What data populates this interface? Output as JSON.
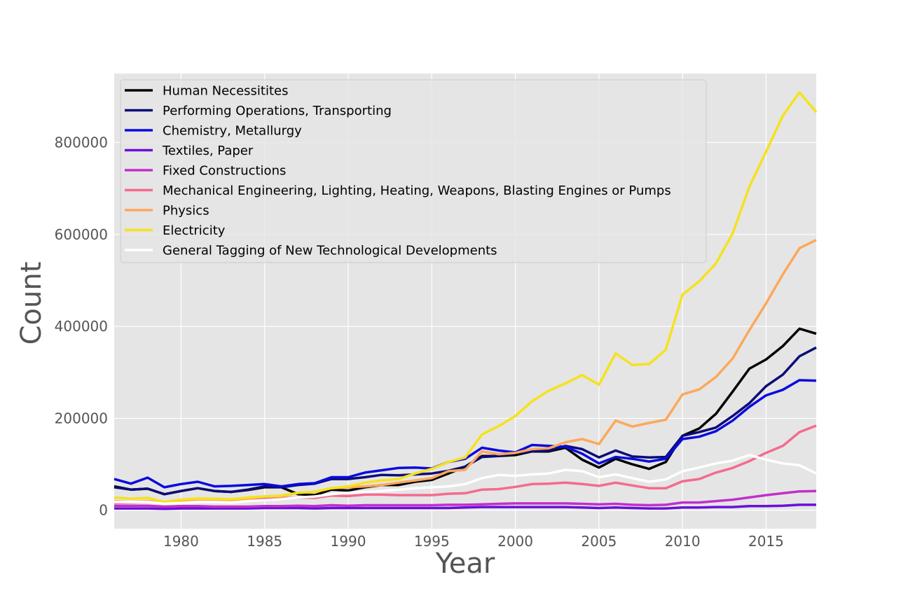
{
  "chart_data": {
    "type": "line",
    "title": "",
    "xlabel": "Year",
    "ylabel": "Count",
    "xlim": [
      1976,
      2018
    ],
    "ylim": [
      -40000,
      950000
    ],
    "xticks": [
      1980,
      1985,
      1990,
      1995,
      2000,
      2005,
      2010,
      2015
    ],
    "yticks": [
      0,
      200000,
      400000,
      600000,
      800000
    ],
    "grid": true,
    "legend_position": "upper-left",
    "x": [
      1976,
      1977,
      1978,
      1979,
      1980,
      1981,
      1982,
      1983,
      1984,
      1985,
      1986,
      1987,
      1988,
      1989,
      1990,
      1991,
      1992,
      1993,
      1994,
      1995,
      1996,
      1997,
      1998,
      1999,
      2000,
      2001,
      2002,
      2003,
      2004,
      2005,
      2006,
      2007,
      2008,
      2009,
      2010,
      2011,
      2012,
      2013,
      2014,
      2015,
      2016,
      2017,
      2018
    ],
    "series": [
      {
        "name": "Human Necessitites",
        "color": "#000000",
        "values": [
          52000,
          45000,
          47000,
          35000,
          42000,
          48000,
          42000,
          40000,
          44000,
          50000,
          50000,
          35000,
          33000,
          45000,
          43000,
          50000,
          55000,
          55000,
          62000,
          66000,
          80000,
          95000,
          118000,
          118000,
          120000,
          128000,
          128000,
          136000,
          110000,
          93000,
          112000,
          100000,
          90000,
          105000,
          162000,
          178000,
          210000,
          258000,
          308000,
          328000,
          357000,
          395000,
          384000
        ]
      },
      {
        "name": "Performing Operations, Transporting",
        "color": "#0c0c78",
        "values": [
          50000,
          45000,
          47000,
          35000,
          42000,
          48000,
          42000,
          40000,
          45000,
          52000,
          50000,
          55000,
          58000,
          68000,
          68000,
          72000,
          77000,
          76000,
          78000,
          80000,
          86000,
          95000,
          116000,
          118000,
          125000,
          128000,
          130000,
          140000,
          133000,
          115000,
          130000,
          117000,
          115000,
          116000,
          162000,
          170000,
          180000,
          205000,
          233000,
          270000,
          295000,
          335000,
          354000
        ]
      },
      {
        "name": "Chemistry, Metallurgy",
        "color": "#0a0ae0",
        "values": [
          68000,
          58000,
          71000,
          50000,
          57000,
          62000,
          52000,
          53000,
          55000,
          57000,
          52000,
          57000,
          59000,
          72000,
          72000,
          82000,
          87000,
          92000,
          93000,
          91000,
          105000,
          112000,
          136000,
          130000,
          126000,
          142000,
          140000,
          138000,
          123000,
          102000,
          116000,
          112000,
          106000,
          112000,
          155000,
          160000,
          172000,
          195000,
          225000,
          250000,
          262000,
          283000,
          282000
        ]
      },
      {
        "name": "Textiles, Paper",
        "color": "#6a10d8",
        "values": [
          4000,
          4000,
          4000,
          3000,
          4000,
          4000,
          4000,
          4000,
          4000,
          5000,
          5000,
          5000,
          4000,
          5000,
          5000,
          5000,
          5000,
          5000,
          5000,
          5000,
          5000,
          6000,
          7000,
          7000,
          7000,
          7000,
          7000,
          7000,
          6000,
          5000,
          6000,
          5000,
          4000,
          4000,
          6000,
          6000,
          7000,
          7000,
          9000,
          9000,
          10000,
          12000,
          12000
        ]
      },
      {
        "name": "Fixed Constructions",
        "color": "#c22fcb",
        "values": [
          10000,
          10000,
          10000,
          8000,
          9000,
          9000,
          8000,
          8000,
          8000,
          9000,
          9000,
          10000,
          9000,
          11000,
          10000,
          11000,
          11000,
          11000,
          11000,
          11000,
          12000,
          12000,
          13000,
          14000,
          15000,
          15000,
          15000,
          15000,
          14000,
          13000,
          14000,
          12000,
          11000,
          12000,
          17000,
          17000,
          20000,
          23000,
          28000,
          33000,
          37000,
          41000,
          42000
        ]
      },
      {
        "name": "Mechanical Engineering, Lighting, Heating, Weapons, Blasting Engines or Pumps",
        "color": "#f46b8e",
        "values": [
          16000,
          17000,
          18000,
          14000,
          18000,
          20000,
          19000,
          19000,
          22000,
          25000,
          26000,
          28000,
          27000,
          32000,
          31000,
          34000,
          34000,
          33000,
          33000,
          33000,
          36000,
          37000,
          45000,
          46000,
          51000,
          57000,
          58000,
          60000,
          57000,
          53000,
          60000,
          54000,
          48000,
          48000,
          63000,
          68000,
          82000,
          92000,
          107000,
          125000,
          140000,
          170000,
          184000
        ]
      },
      {
        "name": "Physics",
        "color": "#fca85b",
        "values": [
          20000,
          18000,
          20000,
          15000,
          18000,
          20000,
          20000,
          20000,
          25000,
          30000,
          30000,
          38000,
          40000,
          48000,
          50000,
          52000,
          55000,
          60000,
          65000,
          70000,
          85000,
          88000,
          128000,
          122000,
          125000,
          133000,
          135000,
          148000,
          155000,
          144000,
          195000,
          182000,
          190000,
          197000,
          252000,
          263000,
          290000,
          330000,
          392000,
          450000,
          513000,
          570000,
          588000
        ]
      },
      {
        "name": "Electricity",
        "color": "#f5e21d",
        "values": [
          28000,
          25000,
          27000,
          18000,
          23000,
          26000,
          25000,
          24000,
          28000,
          30000,
          32000,
          38000,
          40000,
          48000,
          52000,
          60000,
          65000,
          68000,
          80000,
          90000,
          105000,
          115000,
          165000,
          183000,
          205000,
          237000,
          260000,
          276000,
          294000,
          273000,
          341000,
          316000,
          318000,
          349000,
          469000,
          498000,
          537000,
          602000,
          704000,
          780000,
          858000,
          909000,
          866000
        ]
      },
      {
        "name": "General Tagging of New Technological Developments",
        "color": "#ffffff",
        "values": [
          18000,
          18000,
          18000,
          14000,
          16000,
          18000,
          18000,
          17000,
          20000,
          22000,
          24000,
          28000,
          30000,
          35000,
          38000,
          40000,
          42000,
          45000,
          48000,
          50000,
          52000,
          57000,
          70000,
          77000,
          75000,
          78000,
          80000,
          88000,
          85000,
          72000,
          78000,
          70000,
          62000,
          67000,
          85000,
          93000,
          102000,
          108000,
          120000,
          110000,
          102000,
          98000,
          80000
        ]
      }
    ]
  }
}
